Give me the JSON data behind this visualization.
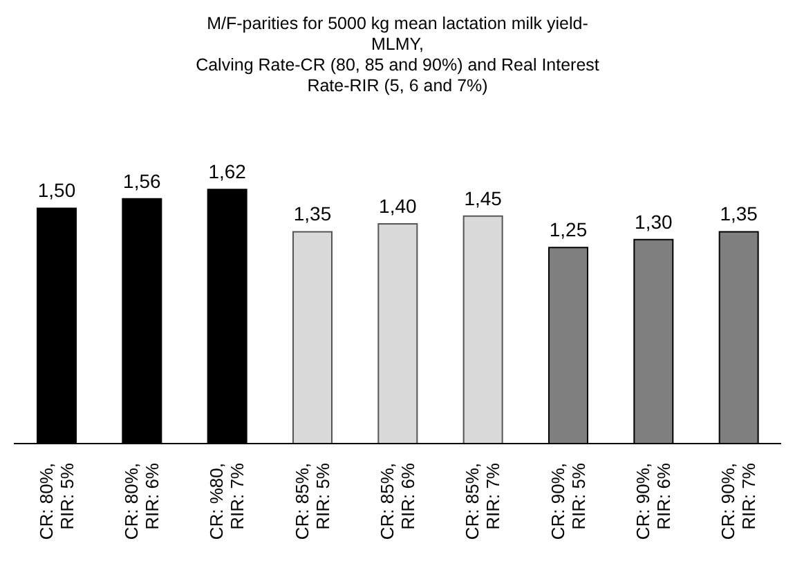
{
  "chart_data": {
    "type": "bar",
    "title": "M/F-parities for 5000 kg mean lactation milk yield-\nMLMY,\nCalving Rate-CR (80, 85 and 90%) and Real Interest\nRate-RIR (5, 6 and 7%)",
    "categories": [
      "CR: 80%, RIR: 5%",
      "CR: 80%, RIR: 6%",
      "CR: %80, RIR: 7%",
      "CR: 85%, RIR: 5%",
      "CR: 85%, RIR: 6%",
      "CR: 85%, RIR: 7%",
      "CR: 90%, RIR: 5%",
      "CR: 90%, RIR: 6%",
      "CR: 90%, RIR: 7%"
    ],
    "values": [
      1.5,
      1.56,
      1.62,
      1.35,
      1.4,
      1.45,
      1.25,
      1.3,
      1.35
    ],
    "value_labels": [
      "1,50",
      "1,56",
      "1,62",
      "1,35",
      "1,40",
      "1,45",
      "1,25",
      "1,30",
      "1,35"
    ],
    "colors": [
      "#000000",
      "#000000",
      "#000000",
      "#d9d9d9",
      "#d9d9d9",
      "#d9d9d9",
      "#7f7f7f",
      "#7f7f7f",
      "#7f7f7f"
    ],
    "tick_labels": "x",
    "grid": false,
    "legend": false
  }
}
